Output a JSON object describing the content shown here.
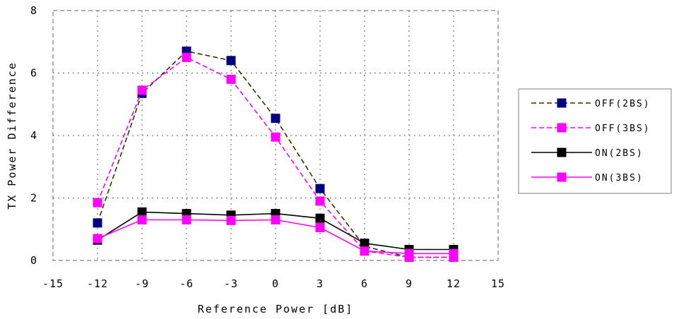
{
  "chart_data": {
    "type": "line",
    "title": "",
    "xlabel": "Reference Power [dB]",
    "ylabel": "TX Power Difference",
    "xlim": [
      -15,
      15
    ],
    "ylim": [
      0,
      8
    ],
    "xticks": [
      -15,
      -12,
      -9,
      -6,
      -3,
      0,
      3,
      6,
      9,
      12,
      15
    ],
    "xtick_labels": [
      "-15",
      "-12",
      "-9",
      "-6",
      "-3",
      "0",
      "3",
      "6",
      "9",
      "12",
      "15"
    ],
    "yticks": [
      0,
      2,
      4,
      6,
      8
    ],
    "ytick_labels": [
      "0",
      "2",
      "4",
      "6",
      "8"
    ],
    "grid": true,
    "legend_position": "right",
    "x": [
      -12,
      -9,
      -6,
      -3,
      0,
      3,
      6,
      9,
      12
    ],
    "series": [
      {
        "name": "OFF(2BS)",
        "values": [
          1.2,
          5.35,
          6.7,
          6.4,
          4.55,
          2.3,
          0.45,
          0.1,
          0.1
        ],
        "line_color": "#333300",
        "marker_color": "#000080",
        "dashed": true
      },
      {
        "name": "OFF(3BS)",
        "values": [
          1.85,
          5.45,
          6.5,
          5.8,
          3.95,
          1.9,
          0.3,
          0.1,
          0.1
        ],
        "line_color": "#ff00ff",
        "marker_color": "#ff00ff",
        "dashed": true
      },
      {
        "name": "ON(2BS)",
        "values": [
          0.65,
          1.55,
          1.5,
          1.45,
          1.5,
          1.35,
          0.55,
          0.35,
          0.35
        ],
        "line_color": "#000000",
        "marker_color": "#000000",
        "dashed": false
      },
      {
        "name": "ON(3BS)",
        "values": [
          0.7,
          1.3,
          1.3,
          1.28,
          1.3,
          1.05,
          0.3,
          0.22,
          0.22
        ],
        "line_color": "#ff00ff",
        "marker_color": "#ff00ff",
        "dashed": false
      }
    ]
  }
}
